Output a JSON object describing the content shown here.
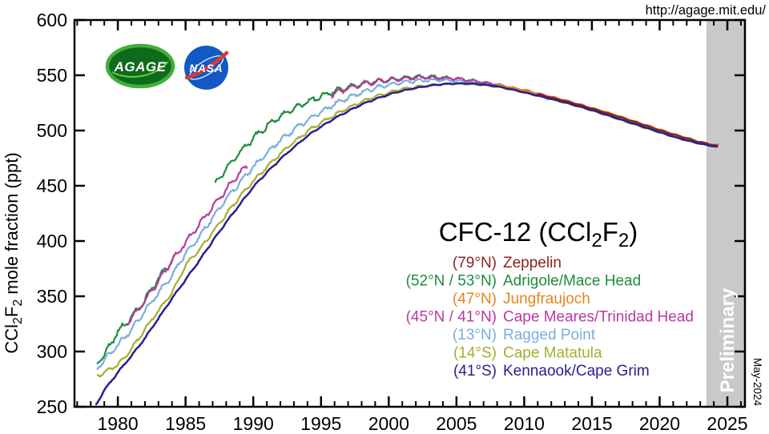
{
  "header": {
    "url": "http://agage.mit.edu/"
  },
  "logos": {
    "agage": "AGAGE",
    "nasa": "NASA"
  },
  "annotations": {
    "preliminary": "Preliminary",
    "date_stamp": "May-2024"
  },
  "title_segments": [
    {
      "t": "CFC-12 (CCl",
      "sub": false
    },
    {
      "t": "2",
      "sub": true
    },
    {
      "t": "F",
      "sub": false
    },
    {
      "t": "2",
      "sub": true
    },
    {
      "t": ")",
      "sub": false
    }
  ],
  "ylabel_segments": [
    {
      "t": "CCl",
      "sub": false
    },
    {
      "t": "2",
      "sub": true
    },
    {
      "t": "F",
      "sub": false
    },
    {
      "t": "2",
      "sub": true
    },
    {
      "t": " mole fraction (ppt)",
      "sub": false
    }
  ],
  "chart_data": {
    "type": "line",
    "title": "CFC-12 (CCl2F2)",
    "xlabel": "",
    "ylabel": "CCl2F2 mole fraction (ppt)",
    "xlim": [
      1976.8,
      2026.3
    ],
    "ylim": [
      250,
      600
    ],
    "x_major_ticks": [
      1980,
      1985,
      1990,
      1995,
      2000,
      2005,
      2010,
      2015,
      2020,
      2025
    ],
    "x_minor_step": 1,
    "y_major_ticks": [
      250,
      300,
      350,
      400,
      450,
      500,
      550,
      600
    ],
    "grid": false,
    "legend_position": "right-center",
    "preliminary_band": {
      "start": 2023.45,
      "end": 2026.3,
      "color": "#c9c9c9"
    },
    "series": [
      {
        "name": "Zeppelin",
        "lat": "(79°N)",
        "color": "#8b2422",
        "seasonal_amplitude": 0.9,
        "segments": [
          [
            [
              2011,
              533
            ],
            [
              2013,
              527
            ],
            [
              2015,
              520
            ],
            [
              2017,
              512.5
            ],
            [
              2019,
              504.5
            ],
            [
              2021,
              496.5
            ],
            [
              2023,
              489.5
            ],
            [
              2024.3,
              486
            ]
          ]
        ]
      },
      {
        "name": "Adrigole/Mace Head",
        "lat": "(52°N / 53°N)",
        "color": "#1f8b3e",
        "seasonal_amplitude": 2.3,
        "segments": [
          [
            [
              1978.5,
              290
            ],
            [
              1979,
              297
            ],
            [
              1980,
              318
            ],
            [
              1981,
              331
            ],
            [
              1982,
              347
            ],
            [
              1983,
              366
            ],
            [
              1984.2,
              386
            ]
          ],
          [
            [
              1987.2,
              452
            ],
            [
              1988,
              466
            ],
            [
              1989,
              480
            ],
            [
              1990,
              493
            ],
            [
              1991,
              504
            ],
            [
              1992,
              513
            ],
            [
              1993,
              520
            ],
            [
              1994,
              526
            ],
            [
              1995,
              531
            ],
            [
              1996,
              535.5
            ],
            [
              1997,
              539
            ],
            [
              1998,
              542
            ],
            [
              1999,
              544.5
            ],
            [
              2000,
              546
            ],
            [
              2001,
              547.5
            ],
            [
              2002,
              548.5
            ],
            [
              2003,
              548.5
            ],
            [
              2004,
              548
            ],
            [
              2005,
              547
            ],
            [
              2006,
              545.5
            ],
            [
              2007,
              543.5
            ],
            [
              2008,
              541.5
            ],
            [
              2009,
              538.5
            ],
            [
              2010,
              536
            ],
            [
              2011,
              533
            ],
            [
              2012,
              530
            ],
            [
              2013,
              527
            ],
            [
              2014,
              523.5
            ],
            [
              2015,
              520
            ],
            [
              2016,
              516
            ],
            [
              2017,
              512
            ],
            [
              2018,
              508
            ],
            [
              2019,
              504
            ],
            [
              2020,
              500
            ],
            [
              2021,
              496
            ],
            [
              2022,
              492.5
            ],
            [
              2023,
              489
            ],
            [
              2024.3,
              486
            ]
          ]
        ]
      },
      {
        "name": "Jungfraujoch",
        "lat": "(47°N)",
        "color": "#e8831f",
        "seasonal_amplitude": 1.1,
        "segments": [
          [
            [
              2008,
              541.5
            ],
            [
              2009,
              539
            ],
            [
              2010,
              536.5
            ],
            [
              2011,
              533.5
            ],
            [
              2012,
              530.5
            ],
            [
              2013,
              527.5
            ],
            [
              2014,
              524
            ],
            [
              2015,
              520.5
            ],
            [
              2016,
              517
            ],
            [
              2017,
              513
            ],
            [
              2018,
              509
            ],
            [
              2019,
              505
            ],
            [
              2020,
              501
            ],
            [
              2021,
              497
            ],
            [
              2022,
              493.5
            ],
            [
              2023,
              489.5
            ],
            [
              2024.3,
              486.5
            ]
          ]
        ]
      },
      {
        "name": "Cape Meares/Trinidad Head",
        "lat": "(45°N / 41°N)",
        "color": "#b93aa0",
        "seasonal_amplitude": 2.0,
        "segments": [
          [
            [
              1980.7,
              325
            ],
            [
              1981,
              330
            ],
            [
              1982,
              346
            ],
            [
              1983,
              364
            ],
            [
              1984,
              382
            ],
            [
              1985,
              399
            ],
            [
              1986,
              415
            ],
            [
              1987,
              431
            ],
            [
              1988,
              447
            ],
            [
              1989,
              462
            ],
            [
              1989.6,
              468
            ]
          ],
          [
            [
              1995.8,
              532.5
            ],
            [
              1996,
              533.5
            ],
            [
              1997,
              538
            ],
            [
              1998,
              541.5
            ],
            [
              1999,
              544
            ],
            [
              2000,
              546
            ],
            [
              2001,
              547
            ],
            [
              2002,
              548
            ],
            [
              2003,
              548
            ],
            [
              2004,
              547.5
            ],
            [
              2005,
              547
            ],
            [
              2006,
              545.5
            ],
            [
              2007,
              543.5
            ],
            [
              2008,
              541.5
            ],
            [
              2009,
              539
            ],
            [
              2010,
              536.5
            ],
            [
              2011,
              533.5
            ],
            [
              2012,
              530.5
            ],
            [
              2013,
              527
            ],
            [
              2014,
              523.5
            ],
            [
              2015,
              520
            ],
            [
              2016,
              516.5
            ],
            [
              2017,
              512.5
            ],
            [
              2018,
              508.5
            ],
            [
              2019,
              504.5
            ],
            [
              2020,
              500.5
            ],
            [
              2021,
              496.5
            ],
            [
              2022,
              493
            ],
            [
              2023,
              489.5
            ],
            [
              2024.3,
              486.5
            ]
          ]
        ]
      },
      {
        "name": "Ragged Point",
        "lat": "(13°N)",
        "color": "#7aaede",
        "seasonal_amplitude": 1.9,
        "segments": [
          [
            [
              1978.5,
              285
            ],
            [
              1979,
              292
            ],
            [
              1980,
              306
            ],
            [
              1981,
              320
            ],
            [
              1982,
              337
            ],
            [
              1983,
              353
            ],
            [
              1984,
              369
            ],
            [
              1985,
              389
            ],
            [
              1986,
              404
            ],
            [
              1987,
              421
            ],
            [
              1988,
              438
            ],
            [
              1989,
              453
            ],
            [
              1990,
              467
            ],
            [
              1991,
              480
            ],
            [
              1992,
              491
            ],
            [
              1993,
              501
            ],
            [
              1994,
              509.5
            ],
            [
              1995,
              517
            ],
            [
              1996,
              524
            ],
            [
              1997,
              529.5
            ],
            [
              1998,
              534.5
            ],
            [
              1999,
              538.5
            ],
            [
              2000,
              541.5
            ],
            [
              2001,
              543.5
            ],
            [
              2002,
              545
            ],
            [
              2003,
              545.5
            ],
            [
              2004,
              545.5
            ],
            [
              2005,
              545
            ],
            [
              2006,
              543.5
            ],
            [
              2007,
              542
            ],
            [
              2008,
              540
            ],
            [
              2009,
              537.5
            ],
            [
              2010,
              534.5
            ],
            [
              2011,
              531.5
            ],
            [
              2012,
              528.5
            ],
            [
              2013,
              525.5
            ],
            [
              2014,
              522
            ],
            [
              2015,
              518.5
            ],
            [
              2016,
              515
            ],
            [
              2017,
              511
            ],
            [
              2018,
              507
            ],
            [
              2019,
              503
            ],
            [
              2020,
              499
            ],
            [
              2021,
              495
            ],
            [
              2022,
              491.5
            ],
            [
              2023,
              488.5
            ],
            [
              2024.3,
              486
            ]
          ]
        ]
      },
      {
        "name": "Cape Matatula",
        "lat": "(14°S)",
        "color": "#a6ae2d",
        "seasonal_amplitude": 1.3,
        "segments": [
          [
            [
              1978.5,
              278
            ],
            [
              1979,
              281
            ],
            [
              1980,
              288
            ],
            [
              1981,
              302
            ],
            [
              1982,
              320
            ],
            [
              1983,
              337
            ],
            [
              1984,
              353
            ],
            [
              1985,
              378
            ],
            [
              1986,
              392
            ],
            [
              1987,
              408
            ],
            [
              1988,
              424
            ],
            [
              1989,
              440
            ],
            [
              1990,
              454
            ],
            [
              1991,
              467
            ],
            [
              1992,
              479
            ],
            [
              1993,
              489.5
            ],
            [
              1994,
              499
            ],
            [
              1995,
              507
            ],
            [
              1996,
              514
            ],
            [
              1997,
              520.5
            ],
            [
              1998,
              526
            ],
            [
              1999,
              530.5
            ],
            [
              2000,
              534.5
            ],
            [
              2001,
              537.5
            ],
            [
              2002,
              539.5
            ],
            [
              2003,
              541
            ],
            [
              2004,
              542
            ],
            [
              2005,
              542.5
            ],
            [
              2006,
              542
            ],
            [
              2007,
              541
            ],
            [
              2008,
              539.5
            ],
            [
              2009,
              537
            ],
            [
              2010,
              534.5
            ],
            [
              2011,
              531.5
            ],
            [
              2012,
              528.5
            ],
            [
              2013,
              525
            ],
            [
              2014,
              521.5
            ],
            [
              2015,
              518
            ],
            [
              2016,
              514
            ],
            [
              2017,
              510
            ],
            [
              2018,
              506
            ],
            [
              2019,
              502
            ],
            [
              2020,
              498
            ],
            [
              2021,
              494.5
            ],
            [
              2022,
              491
            ],
            [
              2023,
              488
            ],
            [
              2024.3,
              485.5
            ]
          ]
        ]
      },
      {
        "name": "Kennaook/Cape Grim",
        "lat": "(41°S)",
        "color": "#2a2090",
        "seasonal_amplitude": 0.6,
        "segments": [
          [
            [
              1978.4,
              252
            ],
            [
              1979,
              265
            ],
            [
              1980,
              281
            ],
            [
              1981,
              296
            ],
            [
              1982,
              312
            ],
            [
              1983,
              330
            ],
            [
              1984,
              348
            ],
            [
              1985,
              365
            ],
            [
              1986,
              382
            ],
            [
              1987,
              400
            ],
            [
              1988,
              417
            ],
            [
              1989,
              433
            ],
            [
              1990,
              449
            ],
            [
              1991,
              462
            ],
            [
              1992,
              474
            ],
            [
              1993,
              485
            ],
            [
              1994,
              495
            ],
            [
              1995,
              503.5
            ],
            [
              1996,
              511
            ],
            [
              1997,
              517.5
            ],
            [
              1998,
              523.5
            ],
            [
              1999,
              528.5
            ],
            [
              2000,
              532.5
            ],
            [
              2001,
              536
            ],
            [
              2002,
              538.5
            ],
            [
              2003,
              540.5
            ],
            [
              2004,
              542
            ],
            [
              2005,
              542.5
            ],
            [
              2006,
              542.5
            ],
            [
              2007,
              541.5
            ],
            [
              2008,
              540
            ],
            [
              2009,
              537.5
            ],
            [
              2010,
              534.5
            ],
            [
              2011,
              531.5
            ],
            [
              2012,
              528.5
            ],
            [
              2013,
              525.5
            ],
            [
              2014,
              522
            ],
            [
              2015,
              518.5
            ],
            [
              2016,
              514.5
            ],
            [
              2017,
              510.5
            ],
            [
              2018,
              506.5
            ],
            [
              2019,
              502.5
            ],
            [
              2020,
              498.5
            ],
            [
              2021,
              494.5
            ],
            [
              2022,
              491
            ],
            [
              2023,
              488
            ],
            [
              2024.3,
              485
            ]
          ]
        ]
      }
    ]
  }
}
